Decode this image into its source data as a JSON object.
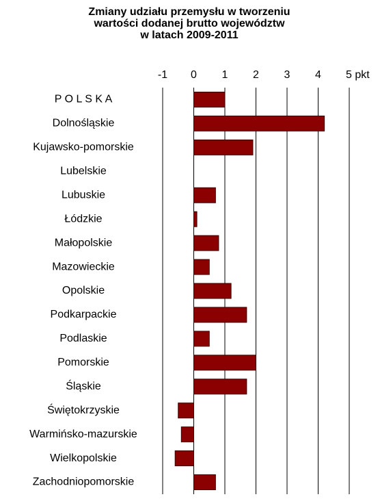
{
  "chart_data": {
    "type": "barh",
    "title": [
      "Zmiany udziału przemysłu w tworzeniu",
      "wartości dodanej brutto województw",
      "w latach 2009-2011"
    ],
    "categories": [
      "P O L S K A",
      "Dolnośląskie",
      "Kujawsko-pomorskie",
      "Lubelskie",
      "Lubuskie",
      "Łódzkie",
      "Małopolskie",
      "Mazowieckie",
      "Opolskie",
      "Podkarpackie",
      "Podlaskie",
      "Pomorskie",
      "Śląskie",
      "Świętokrzyskie",
      "Warmińsko-mazurskie",
      "Wielkopolskie",
      "Zachodniopomorskie"
    ],
    "values": [
      1.0,
      4.2,
      1.9,
      0,
      0.7,
      0.1,
      0.8,
      0.5,
      1.2,
      1.7,
      0.5,
      2.0,
      1.7,
      -0.5,
      -0.4,
      -0.6,
      0.7
    ],
    "color": "#8b0000",
    "xlim": [
      -1,
      5
    ],
    "xticks": [
      -1,
      0,
      1,
      2,
      3,
      4,
      {
        "value": 5,
        "label": "5 pkt"
      }
    ],
    "grid": true
  }
}
